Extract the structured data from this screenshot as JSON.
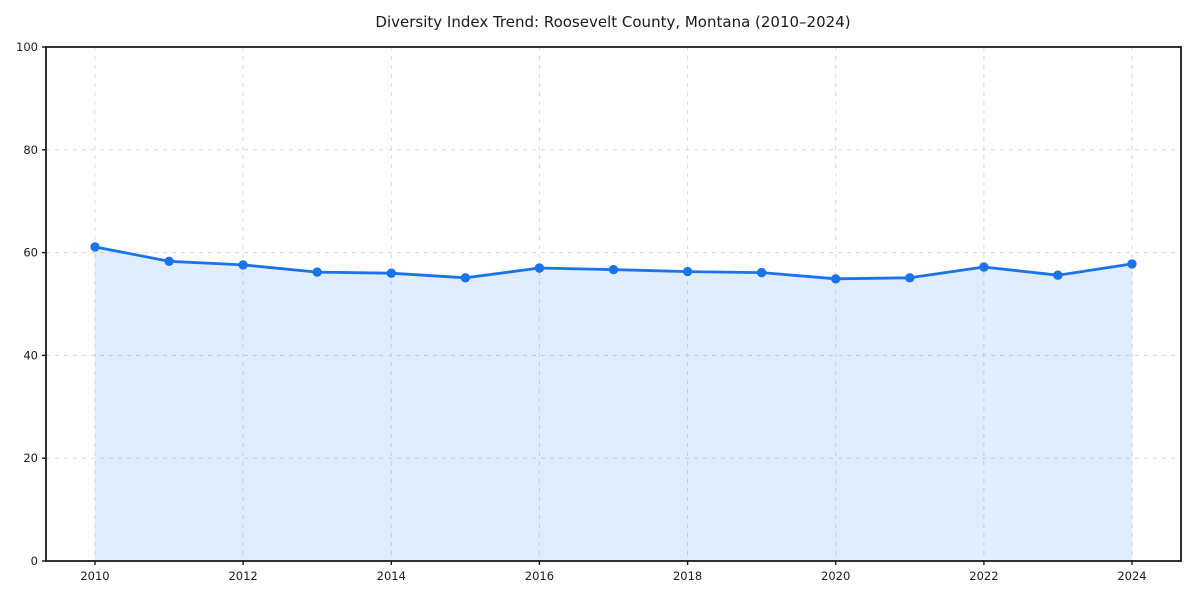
{
  "chart_data": {
    "type": "area",
    "title": "Diversity Index Trend: Roosevelt County, Montana (2010–2024)",
    "xlabel": "",
    "ylabel": "",
    "x": [
      2010,
      2011,
      2012,
      2013,
      2014,
      2015,
      2016,
      2017,
      2018,
      2019,
      2020,
      2021,
      2022,
      2023,
      2024
    ],
    "series": [
      {
        "name": "Diversity Index",
        "values": [
          61.1,
          58.3,
          57.6,
          56.2,
          56.0,
          55.1,
          57.0,
          56.7,
          56.3,
          56.1,
          54.9,
          55.1,
          57.2,
          55.6,
          57.8
        ]
      }
    ],
    "ylim": [
      0,
      100
    ],
    "yticks": [
      0,
      20,
      40,
      60,
      80,
      100
    ],
    "xticks": [
      2010,
      2012,
      2014,
      2016,
      2018,
      2020,
      2022,
      2024
    ],
    "grid": true,
    "grid_style": "dashed",
    "legend": "none",
    "marker": "circle",
    "colors": {
      "line": "#1a73e8",
      "fill": "rgba(26,115,232,0.13)",
      "grid": "#d8d8d8",
      "spine": "#1a1a1a",
      "text": "#1a1a1a",
      "background": "#ffffff"
    }
  }
}
